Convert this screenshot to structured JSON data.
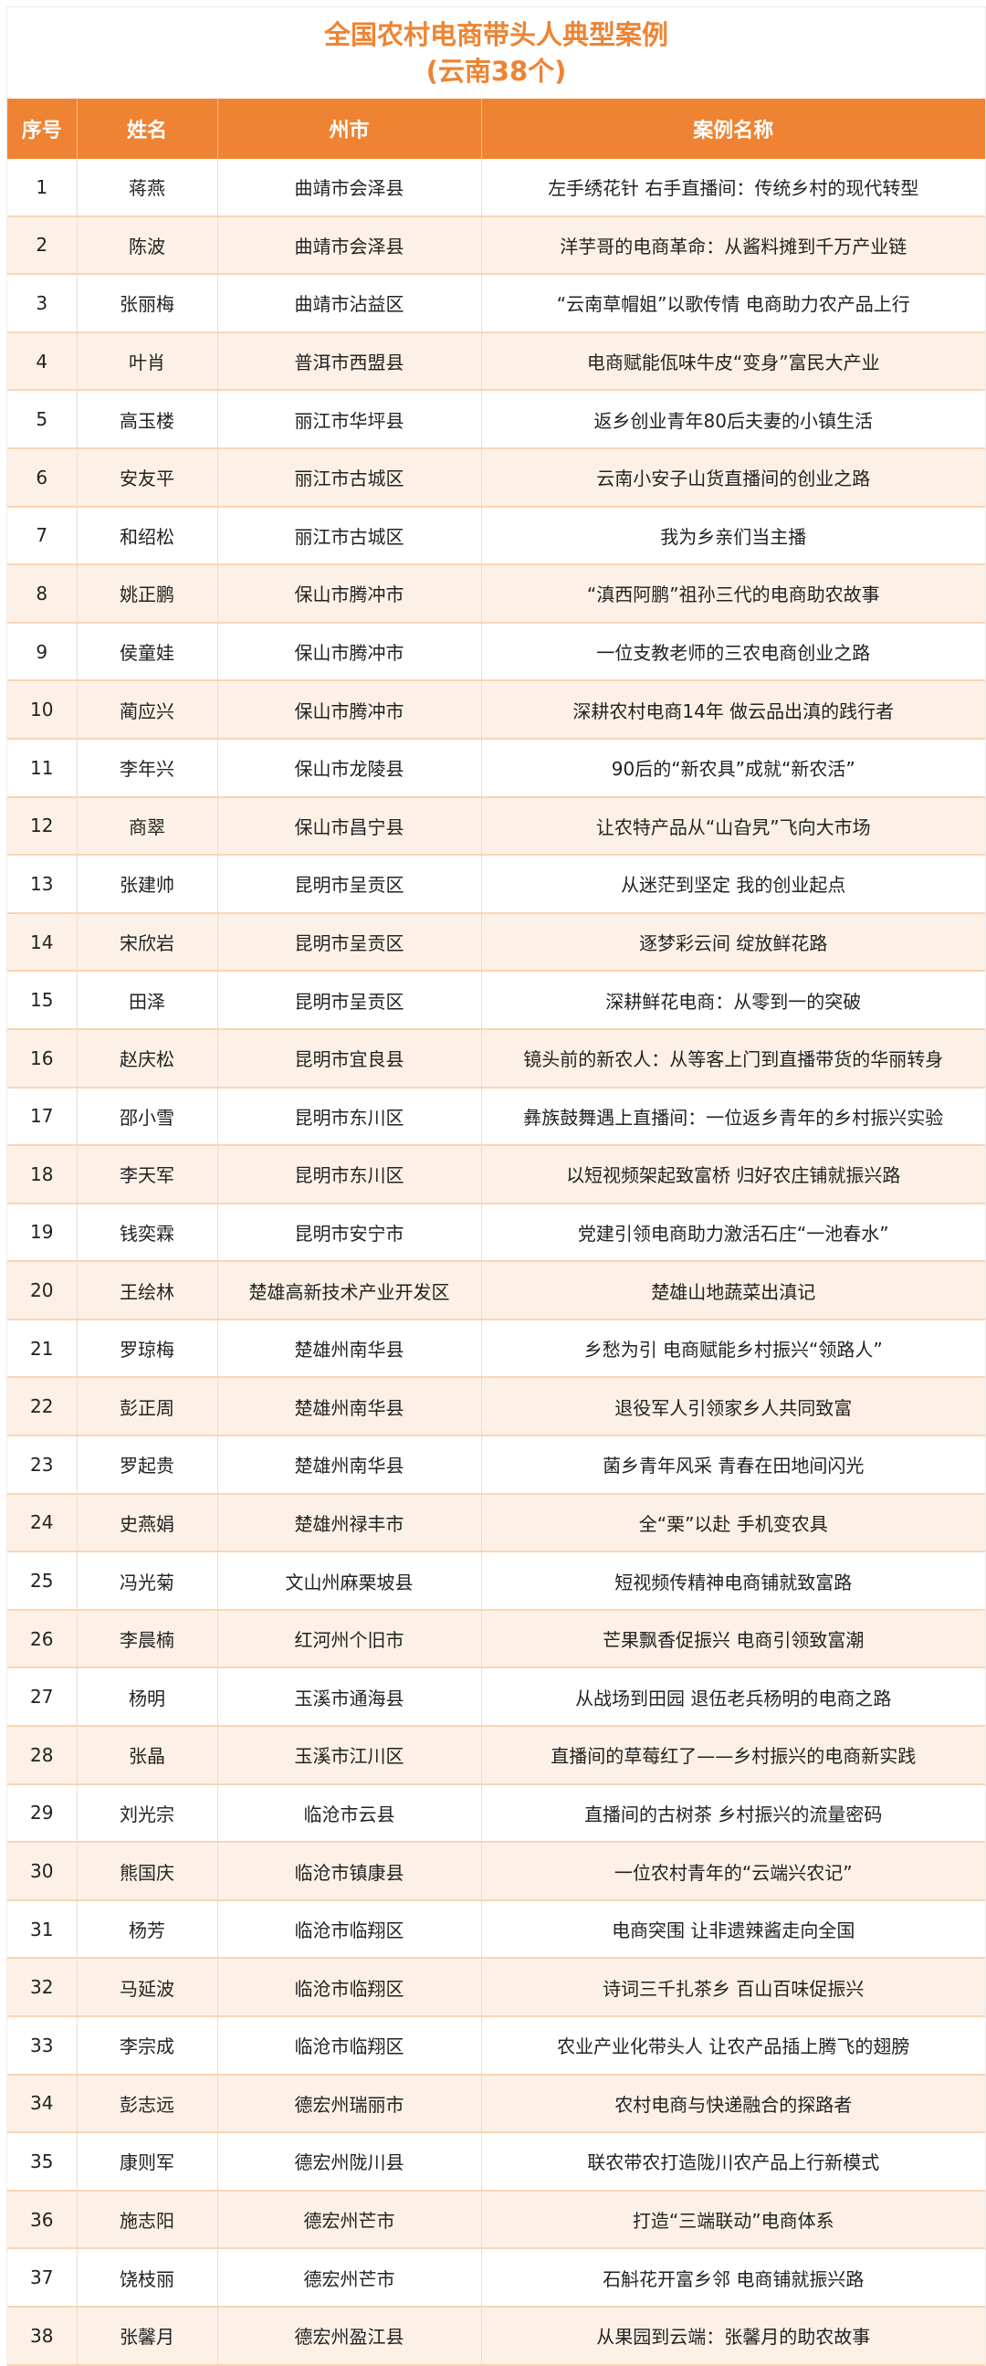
{
  "title": {
    "line1": "全国农村电商带头人典型案例",
    "line2": "(云南38个)"
  },
  "colors": {
    "accent": "#EE8433",
    "alt_row": "#FDF1E7",
    "border": "#F9D5B5"
  },
  "table": {
    "headers": [
      "序号",
      "姓名",
      "州市",
      "案例名称"
    ],
    "rows": [
      [
        "1",
        "蒋燕",
        "曲靖市会泽县",
        "左手绣花针 右手直播间：传统乡村的现代转型"
      ],
      [
        "2",
        "陈波",
        "曲靖市会泽县",
        "洋芋哥的电商革命：从酱料摊到千万产业链"
      ],
      [
        "3",
        "张丽梅",
        "曲靖市沾益区",
        "“云南草帽姐”以歌传情 电商助力农产品上行"
      ],
      [
        "4",
        "叶肖",
        "普洱市西盟县",
        "电商赋能佤味牛皮“变身”富民大产业"
      ],
      [
        "5",
        "高玉楼",
        "丽江市华坪县",
        "返乡创业青年80后夫妻的小镇生活"
      ],
      [
        "6",
        "安友平",
        "丽江市古城区",
        "云南小安子山货直播间的创业之路"
      ],
      [
        "7",
        "和绍松",
        "丽江市古城区",
        "我为乡亲们当主播"
      ],
      [
        "8",
        "姚正鹏",
        "保山市腾冲市",
        "“滇西阿鹏”祖孙三代的电商助农故事"
      ],
      [
        "9",
        "侯童娃",
        "保山市腾冲市",
        "一位支教老师的三农电商创业之路"
      ],
      [
        "10",
        "蔺应兴",
        "保山市腾冲市",
        "深耕农村电商14年 做云品出滇的践行者"
      ],
      [
        "11",
        "李年兴",
        "保山市龙陵县",
        "90后的“新农具”成就“新农活”"
      ],
      [
        "12",
        "商翠",
        "保山市昌宁县",
        "让农特产品从“山旮旯”飞向大市场"
      ],
      [
        "13",
        "张建帅",
        "昆明市呈贡区",
        "从迷茫到坚定 我的创业起点"
      ],
      [
        "14",
        "宋欣岩",
        "昆明市呈贡区",
        "逐梦彩云间 绽放鲜花路"
      ],
      [
        "15",
        "田泽",
        "昆明市呈贡区",
        "深耕鲜花电商：从零到一的突破"
      ],
      [
        "16",
        "赵庆松",
        "昆明市宜良县",
        "镜头前的新农人：从等客上门到直播带货的华丽转身"
      ],
      [
        "17",
        "邵小雪",
        "昆明市东川区",
        "彝族鼓舞遇上直播间：一位返乡青年的乡村振兴实验"
      ],
      [
        "18",
        "李天军",
        "昆明市东川区",
        "以短视频架起致富桥 归好农庄铺就振兴路"
      ],
      [
        "19",
        "钱奕霖",
        "昆明市安宁市",
        "党建引领电商助力激活石庄“一池春水”"
      ],
      [
        "20",
        "王绘林",
        "楚雄高新技术产业开发区",
        "楚雄山地蔬菜出滇记"
      ],
      [
        "21",
        "罗琼梅",
        "楚雄州南华县",
        "乡愁为引 电商赋能乡村振兴“领路人”"
      ],
      [
        "22",
        "彭正周",
        "楚雄州南华县",
        "退役军人引领家乡人共同致富"
      ],
      [
        "23",
        "罗起贵",
        "楚雄州南华县",
        "菌乡青年风采 青春在田地间闪光"
      ],
      [
        "24",
        "史燕娟",
        "楚雄州禄丰市",
        "全“栗”以赴 手机变农具"
      ],
      [
        "25",
        "冯光菊",
        "文山州麻栗坡县",
        "短视频传精神电商铺就致富路"
      ],
      [
        "26",
        "李晨楠",
        "红河州个旧市",
        "芒果飘香促振兴 电商引领致富潮"
      ],
      [
        "27",
        "杨明",
        "玉溪市通海县",
        "从战场到田园 退伍老兵杨明的电商之路"
      ],
      [
        "28",
        "张晶",
        "玉溪市江川区",
        "直播间的草莓红了——乡村振兴的电商新实践"
      ],
      [
        "29",
        "刘光宗",
        "临沧市云县",
        "直播间的古树茶 乡村振兴的流量密码"
      ],
      [
        "30",
        "熊国庆",
        "临沧市镇康县",
        "一位农村青年的“云端兴农记”"
      ],
      [
        "31",
        "杨芳",
        "临沧市临翔区",
        "电商突围 让非遗辣酱走向全国"
      ],
      [
        "32",
        "马延波",
        "临沧市临翔区",
        "诗词三千扎茶乡 百山百味促振兴"
      ],
      [
        "33",
        "李宗成",
        "临沧市临翔区",
        "农业产业化带头人 让农产品插上腾飞的翅膀"
      ],
      [
        "34",
        "彭志远",
        "德宏州瑞丽市",
        "农村电商与快递融合的探路者"
      ],
      [
        "35",
        "康则军",
        "德宏州陇川县",
        "联农带农打造陇川农产品上行新模式"
      ],
      [
        "36",
        "施志阳",
        "德宏州芒市",
        "打造“三端联动”电商体系"
      ],
      [
        "37",
        "饶枝丽",
        "德宏州芒市",
        "石斛花开富乡邻 电商铺就振兴路"
      ],
      [
        "38",
        "张馨月",
        "德宏州盈江县",
        "从果园到云端：张馨月的助农故事"
      ]
    ]
  }
}
